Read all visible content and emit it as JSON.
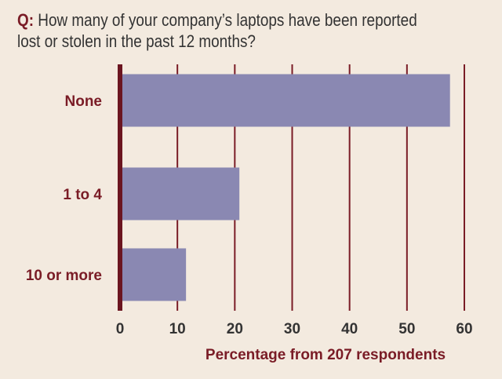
{
  "question": {
    "prefix": "Q:",
    "text": " How many of your company’s laptops have been reported lost or stolen in the past 12 months?"
  },
  "chart_data": {
    "type": "bar",
    "orientation": "horizontal",
    "categories": [
      "None",
      "1 to 4",
      "10 or more"
    ],
    "values": [
      57.5,
      20.8,
      11.5
    ],
    "xlabel": "Percentage from 207 respondents",
    "ylabel": "",
    "xlim": [
      0,
      60
    ],
    "xticks": [
      0,
      10,
      20,
      30,
      40,
      50,
      60
    ],
    "grid": true,
    "colors": {
      "bar": "#8a88b2",
      "grid": "#7a1c26",
      "axis": "#6b1520",
      "text_accent": "#7a1c26",
      "text_dark": "#333333",
      "background": "#f3eadf"
    }
  }
}
